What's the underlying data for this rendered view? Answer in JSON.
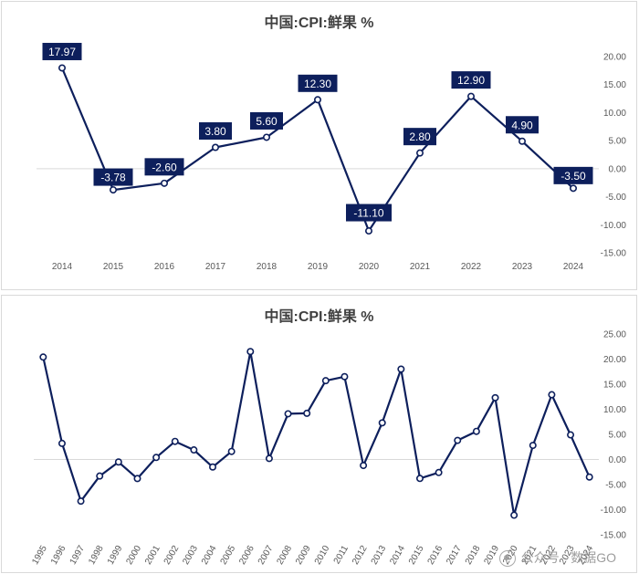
{
  "chart_data": [
    {
      "type": "line",
      "title": "中国:CPI:鲜果 %",
      "categories": [
        "2014",
        "2015",
        "2016",
        "2017",
        "2018",
        "2019",
        "2020",
        "2021",
        "2022",
        "2023",
        "2024"
      ],
      "values": [
        17.97,
        -3.78,
        -2.6,
        3.8,
        5.6,
        12.3,
        -11.1,
        2.8,
        12.9,
        4.9,
        -3.5
      ],
      "data_labels": [
        "17.97",
        "-3.78",
        "-2.60",
        "3.80",
        "5.60",
        "12.30",
        "-11.10",
        "2.80",
        "12.90",
        "4.90",
        "-3.50"
      ],
      "yticks": [
        "20.00",
        "15.00",
        "10.00",
        "5.00",
        "0.00",
        "-5.00",
        "-10.00",
        "-15.00"
      ],
      "ylim": [
        -15,
        20
      ],
      "color": "#0d1f5c",
      "label_bg": "#0d1f5c",
      "axis_position": "right"
    },
    {
      "type": "line",
      "title": "中国:CPI:鲜果 %",
      "categories": [
        "1995",
        "1996",
        "1997",
        "1998",
        "1999",
        "2000",
        "2001",
        "2002",
        "2003",
        "2004",
        "2005",
        "2006",
        "2007",
        "2008",
        "2009",
        "2010",
        "2011",
        "2012",
        "2013",
        "2014",
        "2015",
        "2016",
        "2017",
        "2018",
        "2019",
        "2020",
        "2021",
        "2022",
        "2023",
        "2024"
      ],
      "values": [
        20.4,
        3.2,
        -8.3,
        -3.3,
        -0.5,
        -3.8,
        0.4,
        3.6,
        1.9,
        -1.5,
        1.6,
        21.5,
        0.2,
        9.1,
        9.2,
        15.7,
        16.5,
        -1.2,
        7.3,
        18.0,
        -3.78,
        -2.6,
        3.8,
        5.6,
        12.3,
        -11.1,
        2.8,
        12.9,
        4.9,
        -3.5
      ],
      "yticks": [
        "25.00",
        "20.00",
        "15.00",
        "10.00",
        "5.00",
        "0.00",
        "-5.00",
        "-10.00",
        "-15.00"
      ],
      "ylim": [
        -15,
        25
      ],
      "color": "#0d1f5c",
      "axis_position": "right"
    }
  ],
  "watermark": {
    "text": "公众号 · 数据GO"
  }
}
